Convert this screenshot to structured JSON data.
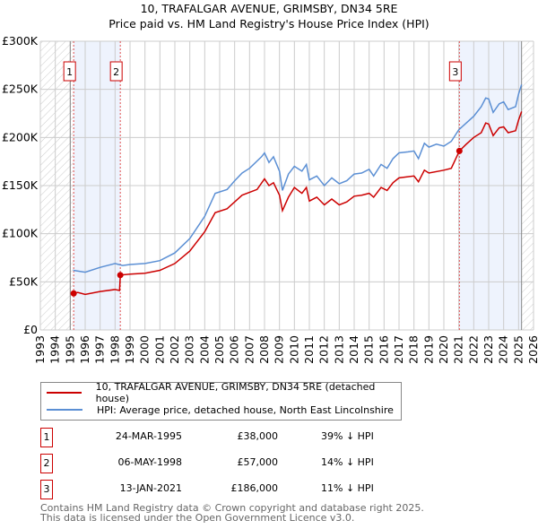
{
  "chart_data": {
    "type": "line",
    "title": "10, TRAFALGAR AVENUE, GRIMSBY, DN34 5RE",
    "subtitle": "Price paid vs. HM Land Registry's House Price Index (HPI)",
    "xlim": [
      1993,
      2026
    ],
    "ylim": [
      0,
      300000
    ],
    "xticks": [
      "1993",
      "1994",
      "1995",
      "1996",
      "1997",
      "1998",
      "1999",
      "2000",
      "2001",
      "2002",
      "2003",
      "2004",
      "2005",
      "2006",
      "2007",
      "2008",
      "2009",
      "2010",
      "2011",
      "2012",
      "2013",
      "2014",
      "2015",
      "2016",
      "2017",
      "2018",
      "2019",
      "2020",
      "2021",
      "2022",
      "2023",
      "2024",
      "2025",
      "2026"
    ],
    "yticks": [
      {
        "v": 0,
        "label": "£0"
      },
      {
        "v": 50000,
        "label": "£50K"
      },
      {
        "v": 100000,
        "label": "£100K"
      },
      {
        "v": 150000,
        "label": "£150K"
      },
      {
        "v": 200000,
        "label": "£200K"
      },
      {
        "v": 250000,
        "label": "£250K"
      },
      {
        "v": 300000,
        "label": "£300K"
      }
    ],
    "grid": true,
    "data_end": 2025.2,
    "series": [
      {
        "name": "10, TRAFALGAR AVENUE, GRIMSBY, DN34 5RE (detached house)",
        "color": "#cc0000",
        "x": [
          1995.23,
          1995.5,
          1996,
          1997,
          1998,
          1998.3,
          1998.35,
          1999,
          2000,
          2001,
          2002,
          2003,
          2004,
          2004.7,
          2005.5,
          2006,
          2006.5,
          2007.5,
          2008,
          2008.3,
          2008.6,
          2009,
          2009.2,
          2009.6,
          2010,
          2010.5,
          2010.8,
          2011,
          2011.5,
          2012,
          2012.5,
          2013,
          2013.5,
          2014,
          2014.5,
          2015,
          2015.3,
          2015.8,
          2016.2,
          2016.6,
          2017,
          2018,
          2018.3,
          2018.7,
          2019,
          2020,
          2020.5,
          2021.04,
          2021.5,
          2022,
          2022.5,
          2022.8,
          2023,
          2023.3,
          2023.7,
          2024,
          2024.3,
          2024.8,
          2025,
          2025.2
        ],
        "y": [
          38,
          39,
          37,
          40,
          42,
          41,
          57,
          58,
          59,
          62,
          69,
          82,
          102,
          122,
          126,
          133,
          140,
          146,
          157,
          150,
          153,
          140,
          124,
          138,
          148,
          142,
          148,
          134,
          138,
          130,
          136,
          130,
          133,
          139,
          140,
          142,
          138,
          148,
          145,
          153,
          158,
          160,
          154,
          166,
          163,
          166,
          168,
          186,
          193,
          200,
          205,
          215,
          214,
          202,
          210,
          211,
          205,
          207,
          218,
          227
        ]
      },
      {
        "name": "HPI: Average price, detached house, North East Lincolnshire",
        "color": "#5b8fd4",
        "x": [
          1995.2,
          1996,
          1997,
          1998,
          1998.5,
          1999,
          2000,
          2001,
          2002,
          2003,
          2004,
          2004.7,
          2005.5,
          2006,
          2006.5,
          2007,
          2007.8,
          2008,
          2008.3,
          2008.6,
          2009,
          2009.2,
          2009.6,
          2010,
          2010.5,
          2010.8,
          2011,
          2011.5,
          2012,
          2012.5,
          2013,
          2013.5,
          2014,
          2014.5,
          2015,
          2015.3,
          2015.8,
          2016.2,
          2016.6,
          2017,
          2017.6,
          2018,
          2018.3,
          2018.7,
          2019,
          2019.5,
          2020,
          2020.5,
          2021,
          2021.5,
          2022,
          2022.5,
          2022.8,
          2023,
          2023.3,
          2023.7,
          2024,
          2024.3,
          2024.8,
          2025,
          2025.2
        ],
        "y": [
          62,
          60,
          65,
          69,
          67,
          68,
          69,
          72,
          80,
          95,
          118,
          142,
          146,
          155,
          163,
          168,
          180,
          184,
          174,
          180,
          165,
          145,
          162,
          170,
          165,
          172,
          156,
          160,
          150,
          158,
          152,
          155,
          162,
          163,
          167,
          160,
          172,
          168,
          178,
          184,
          185,
          186,
          178,
          194,
          190,
          193,
          191,
          196,
          208,
          215,
          222,
          232,
          241,
          240,
          226,
          235,
          237,
          229,
          232,
          245,
          255
        ]
      }
    ],
    "sales": [
      {
        "n": "1",
        "date": "24-MAR-1995",
        "x": 1995.23,
        "price": "£38,000",
        "value": 38000,
        "hpi": "39% ↓ HPI"
      },
      {
        "n": "2",
        "date": "06-MAY-1998",
        "x": 1998.35,
        "price": "£57,000",
        "value": 57000,
        "hpi": "14% ↓ HPI"
      },
      {
        "n": "3",
        "date": "13-JAN-2021",
        "x": 2021.04,
        "price": "£186,000",
        "value": 186000,
        "hpi": "11% ↓ HPI"
      }
    ],
    "legend": {
      "red": "10, TRAFALGAR AVENUE, GRIMSBY, DN34 5RE (detached house)",
      "blue": "HPI: Average price, detached house, North East Lincolnshire"
    }
  },
  "footer": [
    "Contains HM Land Registry data © Crown copyright and database right 2025.",
    "This data is licensed under the Open Government Licence v3.0."
  ]
}
